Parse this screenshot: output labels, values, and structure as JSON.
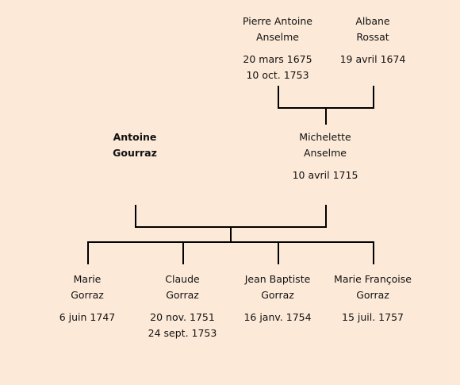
{
  "people": {
    "pierre_antoine": {
      "first": "Pierre Antoine",
      "last": "Anselme",
      "birth": "20 mars 1675",
      "death": "10 oct. 1753"
    },
    "albane": {
      "first": "Albane",
      "last": "Rossat",
      "birth": "19 avril 1674"
    },
    "antoine": {
      "first": "Antoine",
      "last": "Gourraz"
    },
    "michelette": {
      "first": "Michelette",
      "last": "Anselme",
      "birth": "10 avril 1715"
    },
    "marie": {
      "first": "Marie",
      "last": "Gorraz",
      "birth": "6 juin 1747"
    },
    "claude": {
      "first": "Claude",
      "last": "Gorraz",
      "birth": "20 nov. 1751",
      "death": "24 sept. 1753"
    },
    "jean_baptiste": {
      "first": "Jean Baptiste",
      "last": "Gorraz",
      "birth": "16 janv. 1754"
    },
    "marie_francoise": {
      "first": "Marie Françoise",
      "last": "Gorraz",
      "birth": "15 juil. 1757"
    }
  }
}
